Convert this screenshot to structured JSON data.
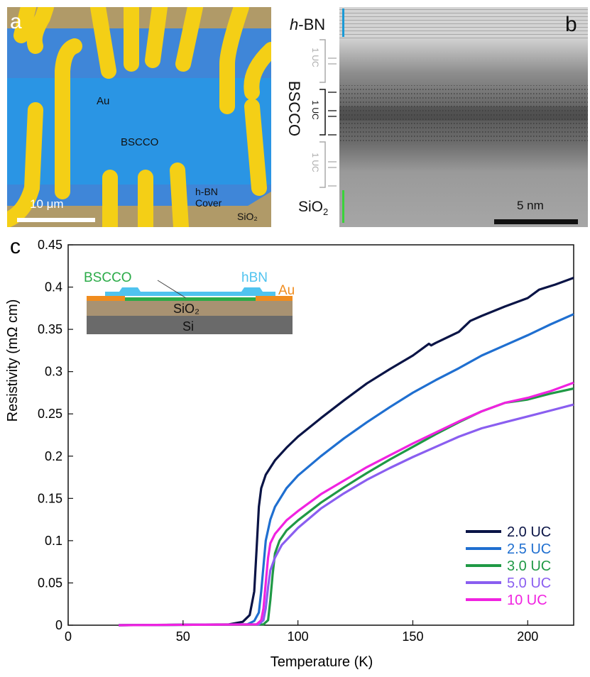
{
  "panel_a": {
    "label": "a",
    "labels": {
      "au": "Au",
      "bscco": "BSCCO",
      "hbn": "h-BN",
      "cover": "Cover",
      "sio2": "SiO₂",
      "scale": "10 μm"
    }
  },
  "panel_b": {
    "label": "b",
    "hbn_prefix": "h",
    "hbn_rest": "-BN",
    "bscco": "BSCCO",
    "uc_top": "1 UC",
    "uc_mid": "1 UC",
    "uc_bot": "1 UC",
    "sio2_main": "SiO",
    "sio2_sub": "2",
    "scale": "5 nm",
    "colors": {
      "hbn_bar": "#1a9ad6",
      "sio2_bar": "#39d339"
    }
  },
  "chart_data": {
    "type": "line",
    "panel_label": "c",
    "xlabel": "Temperature (K)",
    "ylabel": "Resistivity (mΩ cm)",
    "xlim": [
      0,
      220
    ],
    "ylim": [
      0,
      0.45
    ],
    "xticks": [
      0,
      50,
      100,
      150,
      200
    ],
    "xtick_labels": [
      "0",
      "50",
      "100",
      "150",
      "200"
    ],
    "yticks": [
      0,
      0.05,
      0.1,
      0.15,
      0.2,
      0.25,
      0.3,
      0.35,
      0.4,
      0.45
    ],
    "ytick_labels": [
      "0",
      "0.05",
      "0.1",
      "0.15",
      "0.2",
      "0.25",
      "0.3",
      "0.35",
      "0.4",
      "0.45"
    ],
    "grid": false,
    "legend_position": "bottom-right",
    "series": [
      {
        "name": "2.0 UC",
        "color": "#0a1446",
        "points": [
          [
            22,
            0
          ],
          [
            70,
            0.001
          ],
          [
            76,
            0.004
          ],
          [
            79,
            0.012
          ],
          [
            81,
            0.04
          ],
          [
            82,
            0.09
          ],
          [
            83,
            0.14
          ],
          [
            84,
            0.162
          ],
          [
            86,
            0.178
          ],
          [
            90,
            0.195
          ],
          [
            95,
            0.21
          ],
          [
            100,
            0.223
          ],
          [
            110,
            0.245
          ],
          [
            120,
            0.266
          ],
          [
            130,
            0.286
          ],
          [
            140,
            0.303
          ],
          [
            150,
            0.319
          ],
          [
            157,
            0.333
          ],
          [
            158,
            0.331
          ],
          [
            160,
            0.334
          ],
          [
            170,
            0.347
          ],
          [
            175,
            0.36
          ],
          [
            180,
            0.366
          ],
          [
            190,
            0.377
          ],
          [
            200,
            0.387
          ],
          [
            205,
            0.397
          ],
          [
            212,
            0.403
          ],
          [
            220,
            0.411
          ]
        ]
      },
      {
        "name": "2.5 UC",
        "color": "#1f6fd0",
        "points": [
          [
            22,
            0
          ],
          [
            78,
            0.001
          ],
          [
            81,
            0.005
          ],
          [
            83,
            0.015
          ],
          [
            84,
            0.04
          ],
          [
            85,
            0.07
          ],
          [
            86,
            0.1
          ],
          [
            88,
            0.125
          ],
          [
            90,
            0.14
          ],
          [
            95,
            0.162
          ],
          [
            100,
            0.177
          ],
          [
            110,
            0.2
          ],
          [
            120,
            0.221
          ],
          [
            130,
            0.24
          ],
          [
            140,
            0.258
          ],
          [
            150,
            0.275
          ],
          [
            160,
            0.29
          ],
          [
            170,
            0.304
          ],
          [
            180,
            0.319
          ],
          [
            190,
            0.331
          ],
          [
            200,
            0.343
          ],
          [
            210,
            0.356
          ],
          [
            220,
            0.368
          ]
        ]
      },
      {
        "name": "3.0 UC",
        "color": "#1f9945",
        "points": [
          [
            22,
            0
          ],
          [
            85,
            0.001
          ],
          [
            87,
            0.006
          ],
          [
            88,
            0.03
          ],
          [
            89,
            0.06
          ],
          [
            90,
            0.085
          ],
          [
            92,
            0.1
          ],
          [
            95,
            0.112
          ],
          [
            100,
            0.124
          ],
          [
            110,
            0.145
          ],
          [
            120,
            0.163
          ],
          [
            130,
            0.18
          ],
          [
            140,
            0.196
          ],
          [
            150,
            0.211
          ],
          [
            160,
            0.226
          ],
          [
            170,
            0.24
          ],
          [
            180,
            0.253
          ],
          [
            190,
            0.263
          ],
          [
            200,
            0.267
          ],
          [
            210,
            0.274
          ],
          [
            220,
            0.28
          ]
        ]
      },
      {
        "name": "5.0 UC",
        "color": "#8a5ef0",
        "points": [
          [
            22,
            0
          ],
          [
            83,
            0.001
          ],
          [
            85,
            0.006
          ],
          [
            86,
            0.02
          ],
          [
            87,
            0.045
          ],
          [
            88,
            0.065
          ],
          [
            90,
            0.08
          ],
          [
            93,
            0.095
          ],
          [
            100,
            0.115
          ],
          [
            110,
            0.138
          ],
          [
            120,
            0.156
          ],
          [
            130,
            0.172
          ],
          [
            140,
            0.186
          ],
          [
            150,
            0.199
          ],
          [
            160,
            0.211
          ],
          [
            170,
            0.223
          ],
          [
            180,
            0.233
          ],
          [
            190,
            0.24
          ],
          [
            200,
            0.247
          ],
          [
            210,
            0.254
          ],
          [
            220,
            0.261
          ]
        ]
      },
      {
        "name": "10 UC",
        "color": "#f022e0",
        "points": [
          [
            22,
            0
          ],
          [
            82,
            0.001
          ],
          [
            84,
            0.006
          ],
          [
            85,
            0.02
          ],
          [
            86,
            0.05
          ],
          [
            87,
            0.08
          ],
          [
            88,
            0.097
          ],
          [
            90,
            0.108
          ],
          [
            95,
            0.124
          ],
          [
            100,
            0.135
          ],
          [
            110,
            0.155
          ],
          [
            120,
            0.171
          ],
          [
            130,
            0.187
          ],
          [
            140,
            0.201
          ],
          [
            150,
            0.215
          ],
          [
            160,
            0.228
          ],
          [
            170,
            0.241
          ],
          [
            180,
            0.253
          ],
          [
            190,
            0.263
          ],
          [
            200,
            0.269
          ],
          [
            210,
            0.277
          ],
          [
            220,
            0.287
          ]
        ]
      }
    ],
    "inset": {
      "bscco": "BSCCO",
      "hbn": "hBN",
      "au": "Au",
      "sio2": "SiO₂",
      "si": "Si",
      "colors": {
        "bscco": "#2bab48",
        "hbn": "#4fc3ef",
        "au": "#f08c1e",
        "sio2": "#a89272",
        "si": "#6a6a6a"
      }
    }
  }
}
